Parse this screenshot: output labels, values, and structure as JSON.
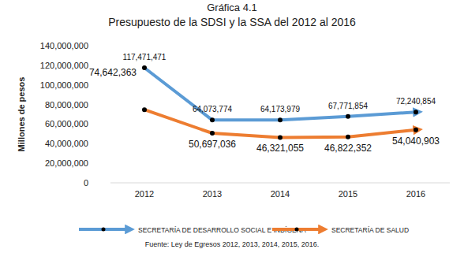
{
  "chart_data": {
    "type": "line",
    "title": "Gráfica 4.1",
    "subtitle": "Presupuesto de la SDSI y la SSA del 2012 al 2016",
    "y_label": "Millones de pesos",
    "source": "Fuente: Ley de Egresos 2012, 2013, 2014, 2015, 2016.",
    "categories": [
      "2012",
      "2013",
      "2014",
      "2015",
      "2016"
    ],
    "series": [
      {
        "name": "SECRETARÍA DE DESARROLLO SOCIAL E INDÍGENA",
        "color": "#5b9bd5",
        "marker": "circle",
        "line_style": "solid",
        "values": [
          117471471,
          64073774,
          64173979,
          67771854,
          72240854
        ],
        "value_labels": [
          "117,471,471",
          "64,073,774",
          "64,173,979",
          "67,771,854",
          "72,240,854"
        ]
      },
      {
        "name": "SECRETARÍA DE SALUD",
        "color": "#ed7d31",
        "marker": "circle",
        "line_style": "solid",
        "values": [
          74642363,
          50697036,
          46321055,
          46822352,
          54040903
        ],
        "value_labels": [
          "74,642,363",
          "50,697,036",
          "46,321,055",
          "46,822,352",
          "54,040,903"
        ]
      }
    ],
    "ylim": [
      0,
      140000000
    ],
    "yticks": [
      0,
      {
        "value": 20000000,
        "label": "20,000,000"
      },
      {
        "value": 40000000,
        "label": "40,000,000"
      },
      {
        "value": 60000000,
        "label": "60,000,000"
      },
      {
        "value": 80000000,
        "label": "80,000,000"
      },
      {
        "value": 100000000,
        "label": "100,000,000"
      },
      {
        "value": 120000000,
        "label": "120,000,000"
      },
      {
        "value": 140000000,
        "label": "140,000,000"
      }
    ],
    "grid": false,
    "legend": "bottom",
    "data_labels": true
  }
}
